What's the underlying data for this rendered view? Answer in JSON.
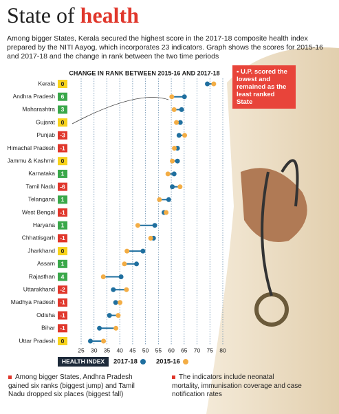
{
  "header": {
    "title_start": "State of",
    "title_highlight": "health",
    "subtitle": "Among bigger States, Kerala secured the highest score in the 2017-18 composite health index prepared by the NITI Aayog, which incorporates 23 indicators. Graph shows the scores for 2015-16 and 2017-18 and the change in rank between the two time periods"
  },
  "chart_data": {
    "type": "dumbbell",
    "title": "CHANGE IN RANK BETWEEN 2015-16 AND 2017-18",
    "categories": [
      "Kerala",
      "Andhra Pradesh",
      "Maharashtra",
      "Gujarat",
      "Punjab",
      "Himachal Pradesh",
      "Jammu & Kashmir",
      "Karnataka",
      "Tamil Nadu",
      "Telangana",
      "West Bengal",
      "Haryana",
      "Chhattisgarh",
      "Jharkhand",
      "Assam",
      "Rajasthan",
      "Uttarakhand",
      "Madhya Pradesh",
      "Odisha",
      "Bihar",
      "Uttar Pradesh"
    ],
    "rank_change": [
      0,
      6,
      3,
      0,
      -3,
      -1,
      0,
      1,
      -6,
      1,
      -1,
      1,
      -1,
      0,
      1,
      4,
      -2,
      -1,
      -1,
      -1,
      0
    ],
    "legend_label": "HEALTH INDEX",
    "series": [
      {
        "name": "2017-18",
        "color": "#1f6f9f",
        "values": [
          74.0,
          65.1,
          64.0,
          63.5,
          63.0,
          62.4,
          62.4,
          61.1,
          60.4,
          59.0,
          57.2,
          53.6,
          53.1,
          49.0,
          46.5,
          40.5,
          37.5,
          38.4,
          36.0,
          32.1,
          28.6
        ]
      },
      {
        "name": "2015-16",
        "color": "#f3ad45",
        "values": [
          76.5,
          60.2,
          61.1,
          62.0,
          65.2,
          61.2,
          60.4,
          58.7,
          63.4,
          55.4,
          58.0,
          47.0,
          52.0,
          42.8,
          41.8,
          33.6,
          42.6,
          40.1,
          39.4,
          38.5,
          33.7
        ]
      }
    ],
    "xlim": [
      25,
      80
    ],
    "xticks": [
      25,
      30,
      35,
      40,
      45,
      50,
      55,
      60,
      65,
      70,
      75,
      80
    ],
    "grid": true,
    "annotation": "U.P. scored the lowest and remained as the least ranked State"
  },
  "footnotes": [
    "Among bigger States, Andhra Pradesh gained six ranks (biggest jump) and Tamil Nadu dropped six places (biggest fall)",
    "The indicators include neonatal mortality, immunisation coverage and case notification rates"
  ]
}
